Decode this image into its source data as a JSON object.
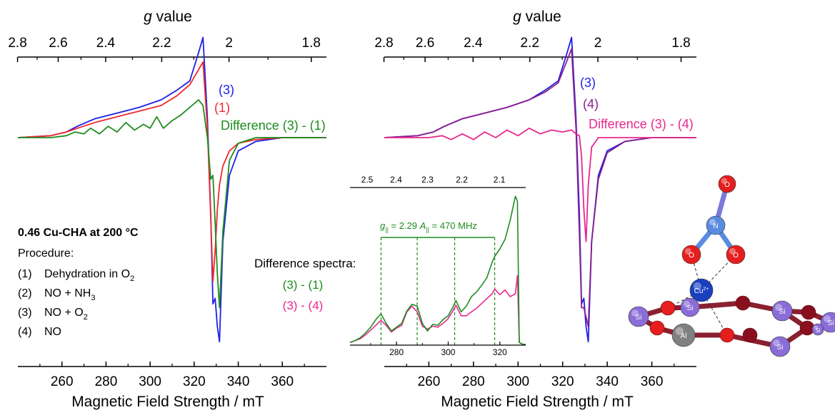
{
  "colors": {
    "blue": "#1f1fe6",
    "red": "#f0282d",
    "green": "#1e8c1e",
    "purple": "#8c1e8c",
    "pink": "#e8288c",
    "axis": "#000000"
  },
  "chart_data": [
    {
      "type": "line",
      "panel": "left",
      "top_axis": {
        "label_italic": "g",
        "label_rest": " value",
        "ticks": [
          "2.8",
          "2.6",
          "2.4",
          "2.2",
          "2",
          "1.8"
        ]
      },
      "bottom_axis": {
        "label": "Magnetic Field Strength / mT",
        "ticks": [
          "260",
          "280",
          "300",
          "320",
          "340",
          "360"
        ],
        "range": [
          240,
          380
        ]
      },
      "series": [
        {
          "name": "(3)",
          "color": "blue",
          "x": [
            240,
            255,
            262,
            267,
            275,
            285,
            295,
            305,
            312,
            318,
            322,
            324,
            326,
            327.5,
            328.5,
            329.5,
            330.5,
            331.5,
            333,
            336,
            340,
            348,
            360,
            380
          ],
          "y": [
            0,
            0.01,
            0.03,
            0.06,
            0.1,
            0.13,
            0.16,
            0.2,
            0.25,
            0.3,
            0.45,
            0.53,
            0.1,
            -0.4,
            -0.88,
            -0.85,
            -1.0,
            -1.08,
            -0.55,
            -0.2,
            -0.07,
            -0.02,
            0,
            0
          ]
        },
        {
          "name": "(1)",
          "color": "red",
          "x": [
            240,
            255,
            262,
            267,
            275,
            285,
            295,
            305,
            312,
            318,
            322,
            324,
            326,
            327.5,
            328.5,
            329.5,
            330.5,
            331.5,
            333,
            336,
            340,
            348,
            360,
            380
          ],
          "y": [
            0,
            0.01,
            0.03,
            0.05,
            0.08,
            0.11,
            0.14,
            0.17,
            0.22,
            0.28,
            0.36,
            0.4,
            0.05,
            -0.42,
            -0.76,
            -0.6,
            -0.38,
            -0.25,
            -0.15,
            -0.07,
            -0.03,
            -0.01,
            0,
            0
          ]
        },
        {
          "name": "Difference (3) - (1)",
          "color": "green",
          "x": [
            240,
            255,
            262,
            266,
            270,
            273,
            277,
            281,
            285,
            289,
            293,
            297,
            300,
            303,
            306,
            310,
            314,
            318,
            322,
            324,
            326,
            327.5,
            328.5,
            329.5,
            330.5,
            331.5,
            333,
            336,
            340,
            348,
            360,
            380
          ],
          "y": [
            0,
            0,
            0.01,
            0.03,
            0.02,
            0.05,
            0.02,
            0.06,
            0.03,
            0.08,
            0.04,
            0.07,
            0.05,
            0.11,
            0.05,
            0.09,
            0.12,
            0.16,
            0.2,
            0.17,
            0.0,
            -0.22,
            -0.2,
            -0.45,
            -0.72,
            -0.9,
            -0.5,
            -0.12,
            -0.03,
            0,
            0,
            0
          ]
        }
      ],
      "annotations": [
        "(3)",
        "(1)",
        "Difference (3) - (1)"
      ],
      "sample_title": "0.46 Cu-CHA at 200 °C",
      "procedure_heading": "Procedure:",
      "procedure": [
        {
          "num": "(1)",
          "text": "Dehydration in O",
          "sub": "2"
        },
        {
          "num": "(2)",
          "text": "NO + NH",
          "sub": "3"
        },
        {
          "num": "(3)",
          "text": "NO + O",
          "sub": "2"
        },
        {
          "num": "(4)",
          "text": "NO",
          "sub": ""
        }
      ]
    },
    {
      "type": "line",
      "panel": "right",
      "top_axis": {
        "label_italic": "g",
        "label_rest": " value",
        "ticks": [
          "2.8",
          "2.6",
          "2.4",
          "2.2",
          "2",
          "1.8"
        ]
      },
      "bottom_axis": {
        "label": "Magnetic Field Strength / mT",
        "ticks": [
          "260",
          "280",
          "300",
          "320",
          "340",
          "360"
        ],
        "range": [
          240,
          380
        ]
      },
      "series": [
        {
          "name": "(3)",
          "color": "blue",
          "x": [
            240,
            255,
            262,
            267,
            275,
            285,
            295,
            305,
            312,
            318,
            322,
            324,
            326,
            327.5,
            328.5,
            329.5,
            330.5,
            331.5,
            333,
            336,
            340,
            348,
            360,
            380
          ],
          "y": [
            0,
            0.01,
            0.03,
            0.06,
            0.1,
            0.13,
            0.16,
            0.2,
            0.25,
            0.3,
            0.45,
            0.53,
            0.1,
            -0.4,
            -0.88,
            -0.85,
            -1.0,
            -1.08,
            -0.55,
            -0.2,
            -0.07,
            -0.02,
            0,
            0
          ]
        },
        {
          "name": "(4)",
          "color": "purple",
          "x": [
            240,
            255,
            262,
            267,
            275,
            285,
            295,
            305,
            312,
            318,
            322,
            324,
            326,
            327.5,
            328.5,
            329.5,
            330.5,
            331.5,
            333,
            336,
            340,
            348,
            360,
            380
          ],
          "y": [
            0,
            0.01,
            0.03,
            0.06,
            0.1,
            0.13,
            0.16,
            0.2,
            0.24,
            0.29,
            0.41,
            0.47,
            0.05,
            -0.5,
            -0.9,
            -0.9,
            -0.95,
            -1.0,
            -0.55,
            -0.22,
            -0.08,
            -0.02,
            0,
            0
          ]
        },
        {
          "name": "Difference (3) - (4)",
          "color": "pink",
          "x": [
            240,
            260,
            266,
            270,
            275,
            280,
            285,
            290,
            295,
            300,
            305,
            310,
            315,
            320,
            324,
            326,
            327.5,
            328.5,
            329.5,
            330.5,
            331.5,
            333,
            336,
            340,
            380
          ],
          "y": [
            0,
            0,
            0.01,
            -0.01,
            0.02,
            -0.01,
            0.03,
            0.0,
            0.04,
            0.01,
            0.05,
            0.02,
            0.04,
            0.03,
            0.04,
            0.02,
            0.01,
            -0.1,
            -0.38,
            -0.55,
            -0.25,
            -0.05,
            0,
            0,
            0
          ]
        }
      ],
      "annotations": [
        "(3)",
        "(4)",
        "Difference (3) - (4)"
      ]
    },
    {
      "type": "line",
      "panel": "inset",
      "caption": "Difference spectra:",
      "top_axis": {
        "ticks": [
          "2.5",
          "2.4",
          "2.3",
          "2.2",
          "2.1"
        ]
      },
      "bottom_axis": {
        "ticks": [
          "280",
          "300",
          "320"
        ],
        "range": [
          262,
          330
        ]
      },
      "hyperfine_label": {
        "g_sym": "g",
        "g_sub": "||",
        "g_val": " = 2.29  ",
        "a_sym": "A",
        "a_sub": "||",
        "a_val": " = 470 MHz"
      },
      "hyperfine_lines": [
        274,
        288,
        302.5,
        318
      ],
      "series": [
        {
          "name": "(3) - (1)",
          "color": "green",
          "x": [
            262,
            264,
            266,
            268,
            270,
            272,
            274,
            276,
            278,
            280,
            282,
            284,
            286,
            288,
            290,
            292,
            294,
            296,
            298,
            300,
            302,
            303,
            305,
            307,
            309,
            311,
            313,
            315,
            317,
            318,
            320,
            322,
            324,
            326,
            326.8,
            327.5,
            329,
            330
          ],
          "y": [
            0.02,
            0.04,
            0.07,
            0.12,
            0.18,
            0.26,
            0.32,
            0.22,
            0.14,
            0.18,
            0.22,
            0.35,
            0.42,
            0.4,
            0.22,
            0.14,
            0.21,
            0.2,
            0.26,
            0.3,
            0.4,
            0.46,
            0.34,
            0.4,
            0.5,
            0.55,
            0.62,
            0.7,
            0.86,
            0.92,
            1.0,
            1.1,
            1.3,
            1.55,
            1.5,
            0.02,
            0.0,
            0.0
          ]
        },
        {
          "name": "(3) - (4)",
          "color": "pink",
          "x": [
            262,
            264,
            266,
            268,
            270,
            272,
            274,
            276,
            278,
            280,
            282,
            284,
            286,
            288,
            290,
            292,
            294,
            296,
            298,
            300,
            302,
            303,
            305,
            307,
            309,
            311,
            313,
            315,
            317,
            318,
            320,
            322,
            324,
            326,
            326.8,
            327.5,
            329,
            330
          ],
          "y": [
            0.02,
            0.04,
            0.06,
            0.1,
            0.15,
            0.2,
            0.25,
            0.2,
            0.13,
            0.17,
            0.2,
            0.34,
            0.4,
            0.34,
            0.19,
            0.16,
            0.19,
            0.18,
            0.22,
            0.27,
            0.36,
            0.41,
            0.3,
            0.3,
            0.34,
            0.38,
            0.43,
            0.48,
            0.53,
            0.58,
            0.52,
            0.57,
            0.5,
            0.53,
            0.72,
            0.02,
            0.0,
            0.0
          ]
        }
      ]
    }
  ],
  "molecule": {
    "atoms": [
      {
        "id": "o-top",
        "label": "O",
        "color": "#e61e1e"
      },
      {
        "id": "n",
        "label": "N",
        "color": "#5b8be0"
      },
      {
        "id": "o-left",
        "label": "O",
        "color": "#e61e1e"
      },
      {
        "id": "o-right",
        "label": "O",
        "color": "#e61e1e"
      },
      {
        "id": "cu",
        "label": "Cu",
        "sup": "2+",
        "color": "#1a3fbf"
      },
      {
        "id": "al",
        "label": "Al",
        "color": "#808080"
      },
      {
        "id": "si1",
        "label": "Si",
        "color": "#8a6dd8"
      },
      {
        "id": "si2",
        "label": "Si",
        "color": "#8a6dd8"
      },
      {
        "id": "si3",
        "label": "Si",
        "color": "#8a6dd8"
      },
      {
        "id": "si4",
        "label": "Si",
        "color": "#8a6dd8"
      },
      {
        "id": "si5",
        "label": "Si",
        "color": "#8a6dd8"
      },
      {
        "id": "si6",
        "label": "Si",
        "color": "#8a6dd8"
      }
    ]
  }
}
